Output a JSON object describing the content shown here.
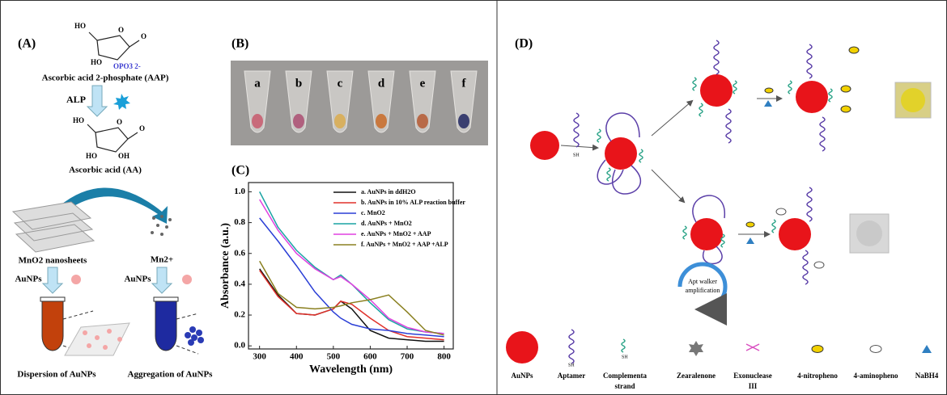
{
  "panel_a": {
    "label": "(A)",
    "aap_atoms": [
      "HO",
      "O",
      "O",
      "HO",
      "OPO3 2-"
    ],
    "aap_name": "Ascorbic acid 2-phosphate (AAP)",
    "enzyme": "ALP",
    "aa_atoms": [
      "HO",
      "O",
      "O",
      "HO",
      "OH"
    ],
    "aa_name": "Ascorbic acid (AA)",
    "sheets": "MnO2 nanosheets",
    "ion": "Mn2+",
    "aunps_left": "AuNPs",
    "aunps_right": "AuNPs",
    "dispersion": "Dispersion of AuNPs",
    "aggregation": "Aggregation of AuNPs"
  },
  "panel_b": {
    "label": "(B)",
    "tubes": [
      "a",
      "b",
      "c",
      "d",
      "e",
      "f"
    ]
  },
  "panel_c": {
    "label": "(C)"
  },
  "chart_data": {
    "type": "line",
    "x_label": "Wavelength (nm)",
    "y_label": "Absorbance (a.u.)",
    "x": [
      300,
      350,
      400,
      450,
      500,
      520,
      550,
      600,
      650,
      700,
      750,
      800
    ],
    "series": [
      {
        "name": "a. AuNPs in ddH2O",
        "color": "#111111",
        "values": [
          0.5,
          0.33,
          0.21,
          0.2,
          0.24,
          0.29,
          0.24,
          0.1,
          0.05,
          0.04,
          0.03,
          0.03
        ]
      },
      {
        "name": "b. AuNPs in 10% ALP reaction buffer",
        "color": "#e0302a",
        "values": [
          0.49,
          0.32,
          0.21,
          0.2,
          0.24,
          0.29,
          0.27,
          0.18,
          0.1,
          0.06,
          0.05,
          0.04
        ]
      },
      {
        "name": "c. MnO2",
        "color": "#2b3fd6",
        "values": [
          0.83,
          0.68,
          0.52,
          0.35,
          0.22,
          0.18,
          0.14,
          0.11,
          0.1,
          0.08,
          0.07,
          0.06
        ]
      },
      {
        "name": "d. AuNPs + MnO2",
        "color": "#1aa3a3",
        "values": [
          1.0,
          0.77,
          0.62,
          0.51,
          0.43,
          0.46,
          0.4,
          0.28,
          0.17,
          0.11,
          0.09,
          0.08
        ]
      },
      {
        "name": "e. AuNPs + MnO2 + AAP",
        "color": "#e040e0",
        "values": [
          0.95,
          0.75,
          0.6,
          0.5,
          0.43,
          0.45,
          0.4,
          0.3,
          0.18,
          0.12,
          0.09,
          0.08
        ]
      },
      {
        "name": "f. AuNPs + MnO2 + AAP +ALP",
        "color": "#8a8020",
        "values": [
          0.55,
          0.34,
          0.25,
          0.24,
          0.25,
          0.26,
          0.28,
          0.3,
          0.33,
          0.22,
          0.1,
          0.07
        ]
      }
    ],
    "xlim": [
      270,
      825
    ],
    "ylim": [
      -0.02,
      1.06
    ],
    "xticks": [
      300,
      400,
      500,
      600,
      700,
      800
    ],
    "yticks": [
      {
        "value": 0,
        "label": "0.0"
      },
      0.2,
      0.4,
      0.6,
      0.8,
      {
        "value": 1,
        "label": "1.0"
      }
    ]
  },
  "panel_d": {
    "label": "(D)",
    "walker": [
      "Apt walker",
      "amplification"
    ],
    "legend": [
      "AuNPs",
      "Aptamer",
      "Complementa",
      "strand",
      "Zearalenone",
      "Exonuclease",
      "III",
      "4-nitropheno",
      "4-aminopheno",
      "NaBH4"
    ],
    "sh": [
      "SH",
      "SH",
      "SH"
    ]
  }
}
